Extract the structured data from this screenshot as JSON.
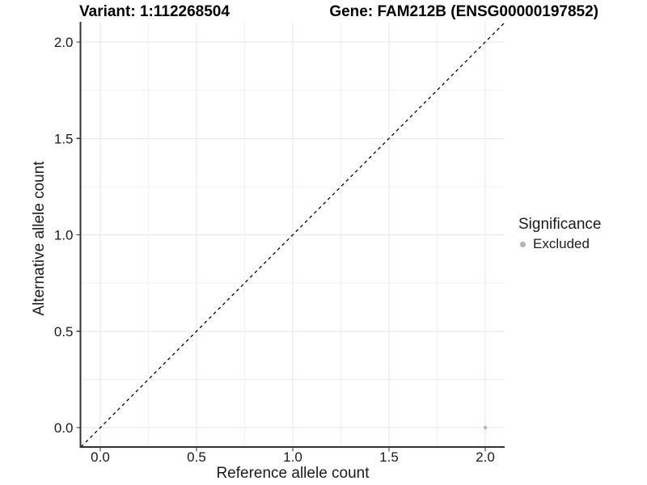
{
  "chart_data": {
    "type": "scatter",
    "title_left": "Variant: 1:112268504",
    "title_right": "Gene: FAM212B (ENSG00000197852)",
    "xlabel": "Reference allele count",
    "ylabel": "Alternative allele count",
    "xlim": [
      -0.1,
      2.1
    ],
    "ylim": [
      -0.1,
      2.1
    ],
    "x_ticks": [
      0.0,
      0.5,
      1.0,
      1.5,
      2.0
    ],
    "y_ticks": [
      0.0,
      0.5,
      1.0,
      1.5,
      2.0
    ],
    "x_minor": [
      0.25,
      0.75,
      1.25,
      1.75
    ],
    "y_minor": [
      0.25,
      0.75,
      1.25,
      1.75
    ],
    "tick_decimals": 1,
    "grid": true,
    "reference_line": {
      "type": "identity",
      "slope": 1,
      "intercept": 0,
      "style": "dashed",
      "color": "#000000"
    },
    "series": [
      {
        "name": "Excluded",
        "color": "#b5b5b5",
        "points": [
          {
            "x": 2.0,
            "y": 0.0
          }
        ]
      }
    ],
    "legend": {
      "title": "Significance",
      "position": "right",
      "items": [
        {
          "label": "Excluded",
          "color": "#b5b5b5"
        }
      ]
    },
    "colors": {
      "grid_major": "#e7e7e7",
      "grid_minor": "#f2f2f2",
      "axis_line": "#333333",
      "tick_text": "#1a1a1a",
      "title_text": "#000000",
      "background": "#ffffff"
    }
  }
}
